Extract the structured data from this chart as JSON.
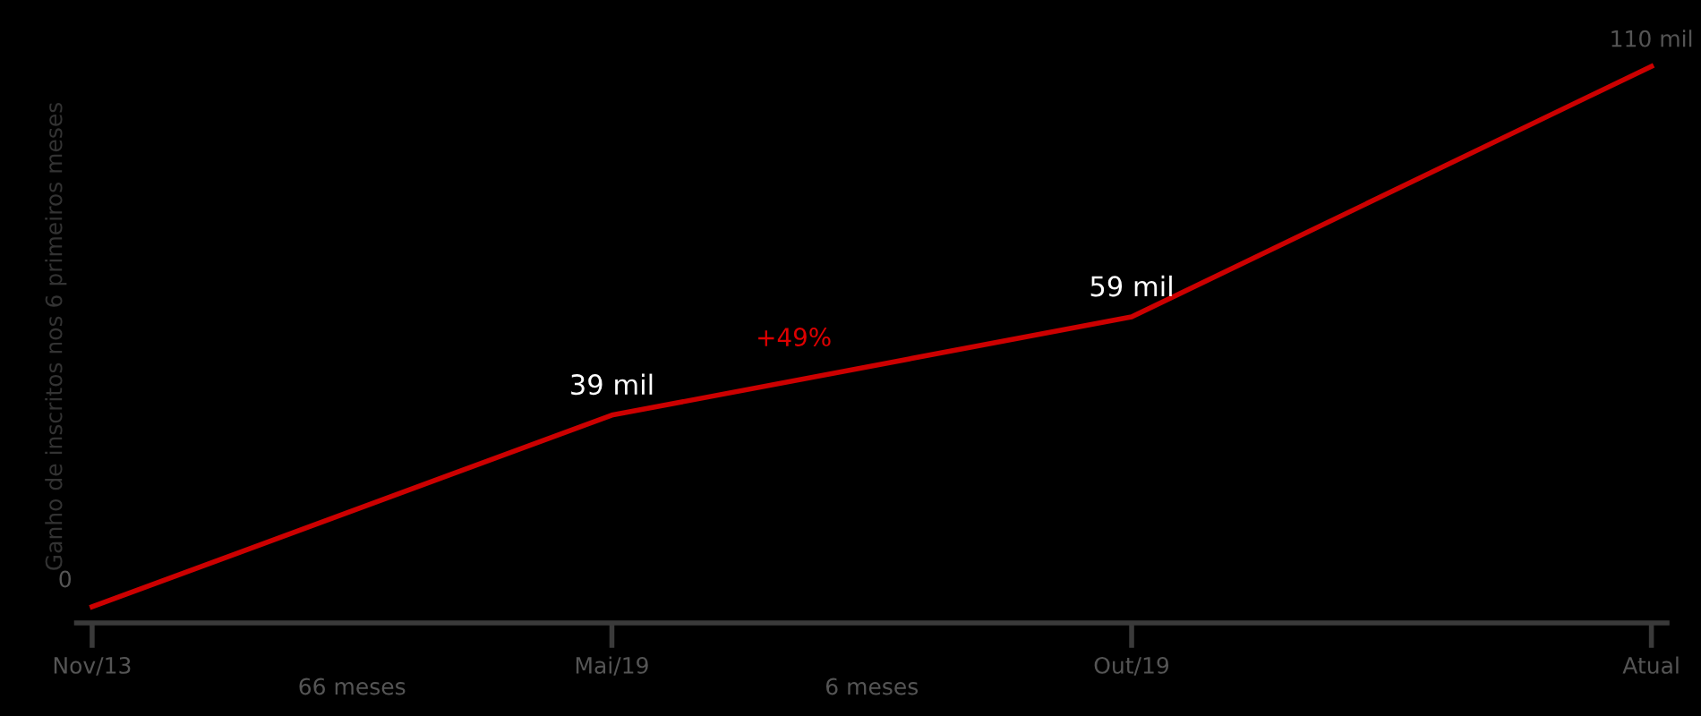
{
  "chart_data": {
    "type": "line",
    "ylabel": "Ganho de inscritos nos 6 primeiros meses",
    "categories": [
      "Nov/13",
      "Mai/19",
      "Out/19",
      "Atual"
    ],
    "series": [
      {
        "color": "#cc0000",
        "values": [
          0,
          39,
          59,
          110
        ],
        "value_labels": [
          "0",
          "39 mil",
          "59 mil",
          "110 mil"
        ]
      }
    ],
    "annotations": [
      "66 meses",
      "6 meses",
      "+49%"
    ],
    "grid": false,
    "legend": false,
    "marker": "none",
    "line_style": "solid"
  }
}
